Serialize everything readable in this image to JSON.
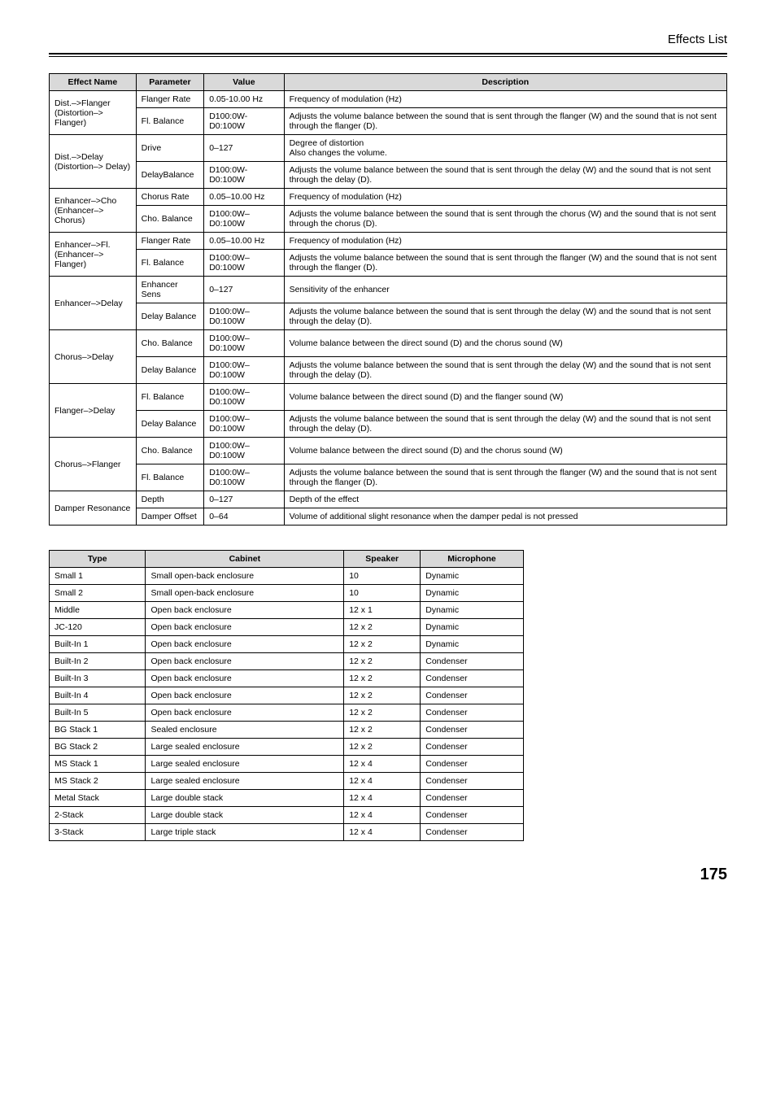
{
  "header": {
    "title": "Effects List"
  },
  "table1": {
    "headers": [
      "Effect Name",
      "Parameter",
      "Value",
      "Description"
    ],
    "rows": [
      {
        "name": "Dist.–>Flanger (Distortion–> Flanger)",
        "nameRowspan": 2,
        "param": "Flanger Rate",
        "value": "0.05-10.00 Hz",
        "desc": "Frequency of modulation (Hz)"
      },
      {
        "param": "Fl. Balance",
        "value": "D100:0W-D0:100W",
        "desc": "Adjusts the volume balance between the sound that is sent through the flanger (W) and the sound that is not sent through the flanger (D)."
      },
      {
        "name": "Dist.–>Delay (Distortion–> Delay)",
        "nameRowspan": 2,
        "param": "Drive",
        "value": "0–127",
        "desc": "Degree of distortion\nAlso changes the volume."
      },
      {
        "param": "DelayBalance",
        "value": "D100:0W-D0:100W",
        "desc": "Adjusts the volume balance between the sound that is sent through the delay (W) and the sound that is not sent through the delay (D)."
      },
      {
        "name": "Enhancer–>Cho (Enhancer–> Chorus)",
        "nameRowspan": 2,
        "param": "Chorus Rate",
        "value": "0.05–10.00 Hz",
        "desc": "Frequency of modulation (Hz)"
      },
      {
        "param": "Cho. Balance",
        "value": "D100:0W–D0:100W",
        "desc": "Adjusts the volume balance between the sound that is sent through the chorus (W) and the sound that is not sent through the chorus (D)."
      },
      {
        "name": "Enhancer–>Fl. (Enhancer–> Flanger)",
        "nameRowspan": 2,
        "param": "Flanger Rate",
        "value": "0.05–10.00 Hz",
        "desc": "Frequency of modulation (Hz)"
      },
      {
        "param": "Fl. Balance",
        "value": "D100:0W–D0:100W",
        "desc": "Adjusts the volume balance between the sound that is sent through the flanger (W) and the sound that is not sent through the flanger (D)."
      },
      {
        "name": "Enhancer–>Delay",
        "nameRowspan": 2,
        "param": "Enhancer Sens",
        "value": "0–127",
        "desc": "Sensitivity of the enhancer"
      },
      {
        "param": "Delay Balance",
        "value": "D100:0W–D0:100W",
        "desc": "Adjusts the volume balance between the sound that is sent through the delay (W) and the sound that is not sent through the delay (D)."
      },
      {
        "name": "Chorus–>Delay",
        "nameRowspan": 2,
        "param": "Cho. Balance",
        "value": "D100:0W–D0:100W",
        "desc": "Volume balance between the direct sound (D) and the chorus sound (W)"
      },
      {
        "param": "Delay Balance",
        "value": "D100:0W–D0:100W",
        "desc": "Adjusts the volume balance between the sound that is sent through the delay (W) and the sound that is not sent through the delay (D)."
      },
      {
        "name": "Flanger–>Delay",
        "nameRowspan": 2,
        "param": "Fl. Balance",
        "value": "D100:0W–D0:100W",
        "desc": "Volume balance between the direct sound (D) and the flanger sound (W)"
      },
      {
        "param": "Delay Balance",
        "value": "D100:0W–D0:100W",
        "desc": "Adjusts the volume balance between the sound that is sent through the delay (W) and the sound that is not sent through the delay (D)."
      },
      {
        "name": "Chorus–>Flanger",
        "nameRowspan": 2,
        "param": "Cho. Balance",
        "value": "D100:0W–D0:100W",
        "desc": "Volume balance between the direct sound (D) and the chorus sound (W)"
      },
      {
        "param": "Fl. Balance",
        "value": "D100:0W–D0:100W",
        "desc": "Adjusts the volume balance between the sound that is sent through the flanger (W) and the sound that is not sent through the flanger (D)."
      },
      {
        "name": "Damper Resonance",
        "nameRowspan": 2,
        "param": "Depth",
        "value": "0–127",
        "desc": "Depth of the effect"
      },
      {
        "param": "Damper Offset",
        "value": "0–64",
        "desc": "Volume of additional slight resonance when the damper pedal is not pressed"
      }
    ]
  },
  "table2": {
    "headers": [
      "Type",
      "Cabinet",
      "Speaker",
      "Microphone"
    ],
    "rows": [
      [
        "Small 1",
        "Small open-back enclosure",
        "10",
        "Dynamic"
      ],
      [
        "Small 2",
        "Small open-back enclosure",
        "10",
        "Dynamic"
      ],
      [
        "Middle",
        "Open back enclosure",
        "12 x 1",
        "Dynamic"
      ],
      [
        "JC-120",
        "Open back enclosure",
        "12 x 2",
        "Dynamic"
      ],
      [
        "Built-In 1",
        "Open back enclosure",
        "12 x 2",
        "Dynamic"
      ],
      [
        "Built-In 2",
        "Open back enclosure",
        "12 x 2",
        "Condenser"
      ],
      [
        "Built-In 3",
        "Open back enclosure",
        "12 x 2",
        "Condenser"
      ],
      [
        "Built-In 4",
        "Open back enclosure",
        "12 x 2",
        "Condenser"
      ],
      [
        "Built-In 5",
        "Open back enclosure",
        "12 x 2",
        "Condenser"
      ],
      [
        "BG Stack 1",
        "Sealed enclosure",
        "12 x 2",
        "Condenser"
      ],
      [
        "BG Stack 2",
        "Large sealed enclosure",
        "12 x 2",
        "Condenser"
      ],
      [
        "MS Stack 1",
        "Large sealed enclosure",
        "12 x 4",
        "Condenser"
      ],
      [
        "MS Stack 2",
        "Large sealed enclosure",
        "12 x 4",
        "Condenser"
      ],
      [
        "Metal Stack",
        "Large double stack",
        "12 x 4",
        "Condenser"
      ],
      [
        "2-Stack",
        "Large double stack",
        "12 x 4",
        "Condenser"
      ],
      [
        "3-Stack",
        "Large triple stack",
        "12 x 4",
        "Condenser"
      ]
    ]
  },
  "pageNumber": "175",
  "colors": {
    "headerBg": "#d9d9d9",
    "border": "#000000",
    "text": "#000000",
    "background": "#ffffff"
  }
}
